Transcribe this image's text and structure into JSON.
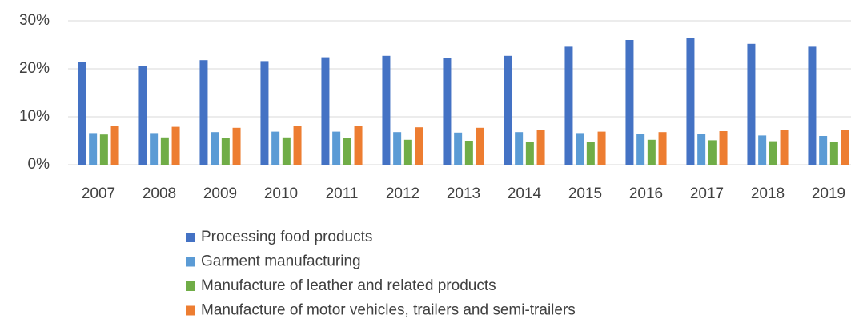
{
  "chart_data": {
    "type": "bar",
    "categories": [
      "2007",
      "2008",
      "2009",
      "2010",
      "2011",
      "2012",
      "2013",
      "2014",
      "2015",
      "2016",
      "2017",
      "2018",
      "2019"
    ],
    "series": [
      {
        "name": "Processing food products",
        "color": "#4472c4",
        "values": [
          21.5,
          20.5,
          21.8,
          21.6,
          22.4,
          22.7,
          22.3,
          22.7,
          24.6,
          26.0,
          26.5,
          25.2,
          24.6
        ]
      },
      {
        "name": "Garment manufacturing",
        "color": "#5b9bd5",
        "values": [
          6.6,
          6.6,
          6.8,
          6.9,
          6.9,
          6.8,
          6.7,
          6.8,
          6.6,
          6.5,
          6.4,
          6.1,
          6.0
        ]
      },
      {
        "name": "Manufacture of leather and related products",
        "color": "#70ad47",
        "values": [
          6.3,
          5.7,
          5.6,
          5.7,
          5.5,
          5.2,
          5.0,
          4.8,
          4.8,
          5.2,
          5.1,
          4.9,
          4.8
        ]
      },
      {
        "name": "Manufacture of motor vehicles, trailers and semi-trailers",
        "color": "#ed7d31",
        "values": [
          8.1,
          7.9,
          7.7,
          8.0,
          8.0,
          7.8,
          7.7,
          7.2,
          6.9,
          6.8,
          7.0,
          7.3,
          7.2
        ]
      }
    ],
    "ylim": [
      0,
      30
    ],
    "yticks": [
      {
        "value": 0,
        "label": "0%"
      },
      {
        "value": 10,
        "label": "10%"
      },
      {
        "value": 20,
        "label": "20%"
      },
      {
        "value": 30,
        "label": "30%"
      }
    ],
    "grid": true,
    "legend": "bottom"
  }
}
